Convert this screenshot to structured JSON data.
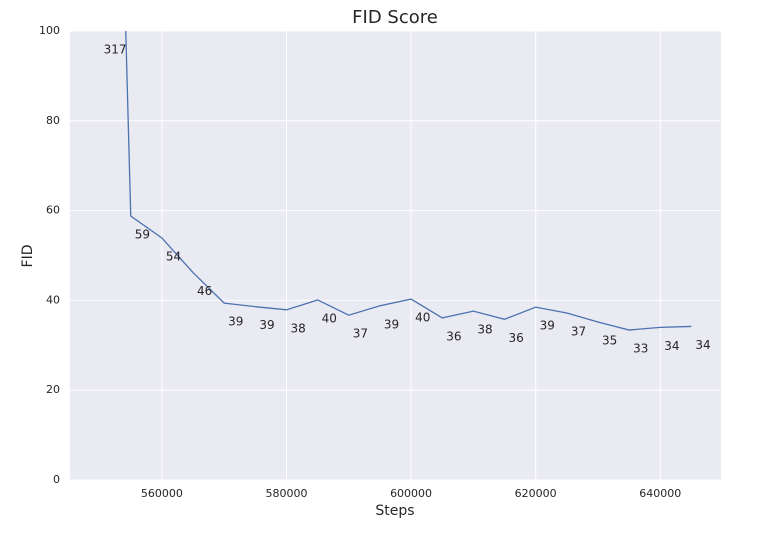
{
  "chart_data": {
    "type": "line",
    "title": "FID Score",
    "x_label": "Steps",
    "y_label": "FID",
    "x": [
      550000,
      555000,
      560000,
      565000,
      570000,
      575000,
      580000,
      585000,
      590000,
      595000,
      600000,
      605000,
      610000,
      615000,
      620000,
      625000,
      630000,
      635000,
      640000,
      645000
    ],
    "series": [
      {
        "name": "FID",
        "color": "#4c72b0",
        "values": [
          317,
          58.8,
          53.9,
          46.2,
          39.4,
          38.6,
          37.9,
          40.1,
          36.7,
          38.8,
          40.3,
          36.1,
          37.6,
          35.8,
          38.5,
          37.2,
          35.2,
          33.4,
          34.0,
          34.2
        ],
        "value_labels": [
          "317",
          "59",
          "54",
          "46",
          "39",
          "39",
          "38",
          "40",
          "37",
          "39",
          "40",
          "36",
          "38",
          "36",
          "39",
          "37",
          "35",
          "33",
          "34",
          "34"
        ]
      }
    ],
    "xlim": [
      545250,
      649750
    ],
    "ylim": [
      0,
      100
    ],
    "xticks": [
      560000,
      580000,
      600000,
      620000,
      640000
    ],
    "yticks": [
      0,
      20,
      40,
      60,
      80,
      100
    ],
    "grid": true
  }
}
